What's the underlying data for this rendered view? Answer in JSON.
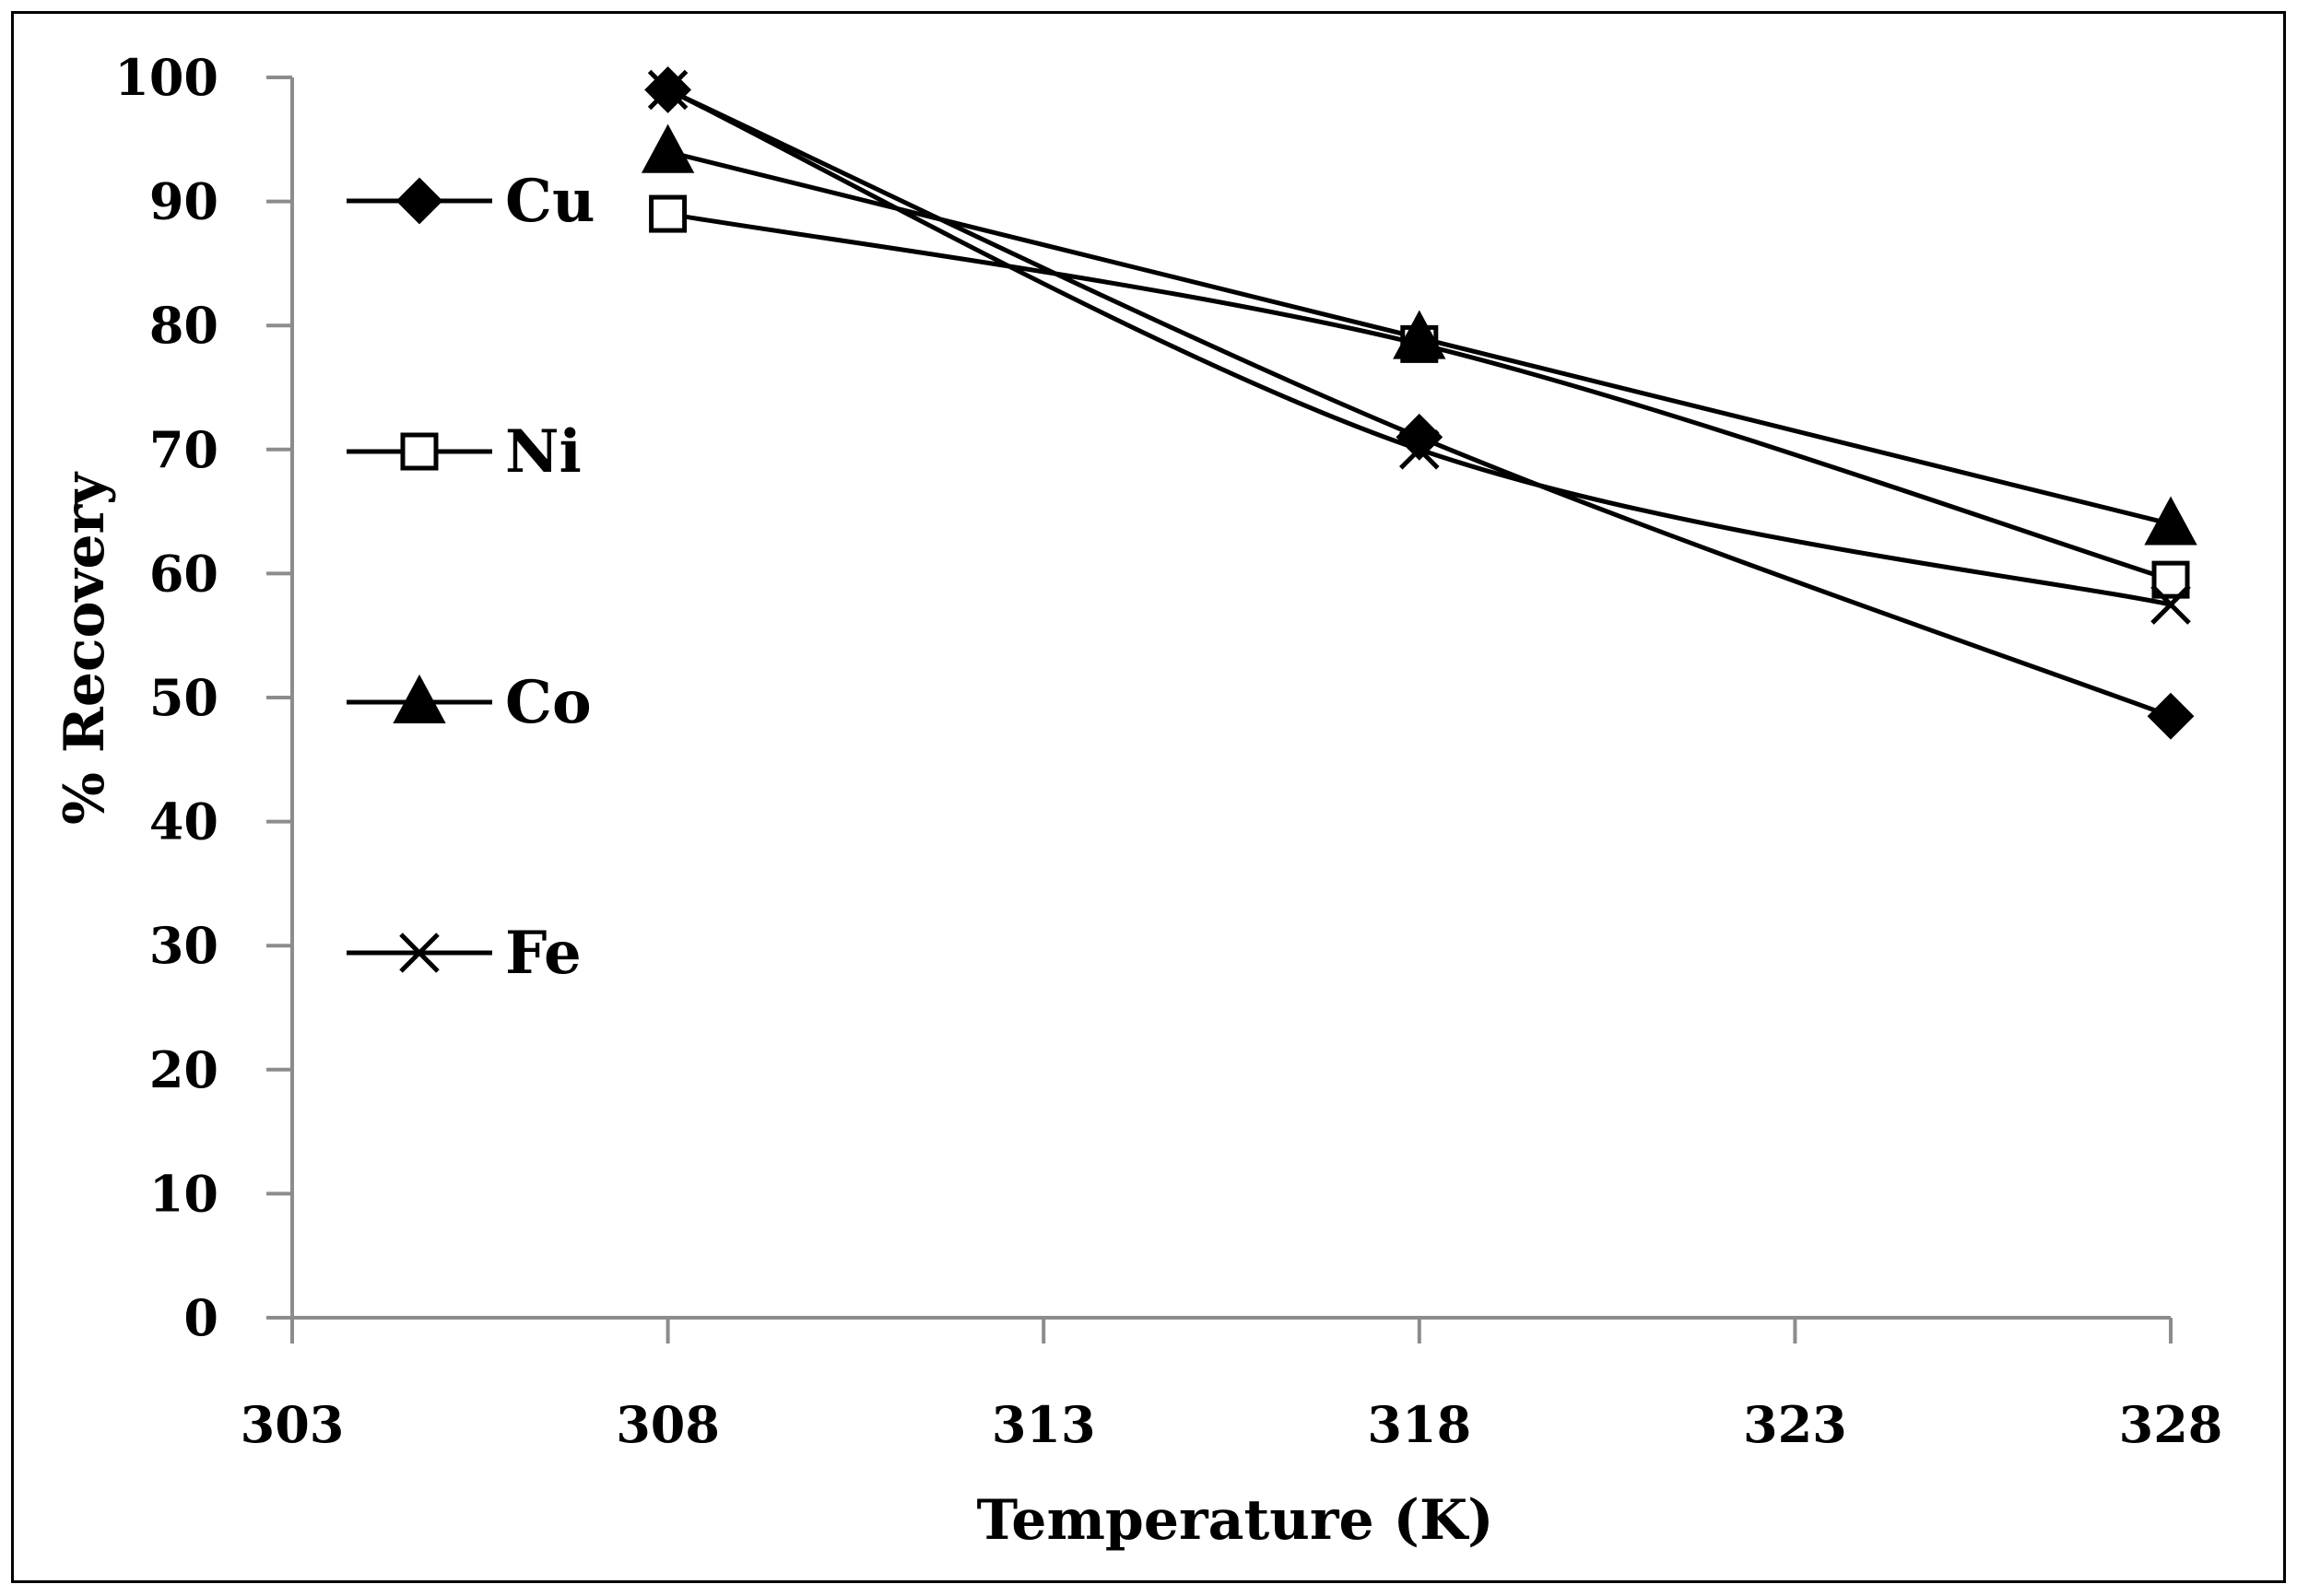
{
  "chart_data": {
    "type": "line",
    "title": "",
    "xlabel": "Temperature (K)",
    "ylabel": "% Recovery",
    "xlim": [
      303,
      328
    ],
    "ylim": [
      0,
      100
    ],
    "xticks": [
      303,
      308,
      313,
      318,
      323,
      328
    ],
    "yticks": [
      0,
      10,
      20,
      30,
      40,
      50,
      60,
      70,
      80,
      90,
      100
    ],
    "grid": false,
    "legend_position": "left",
    "x": [
      308,
      318,
      328
    ],
    "series": [
      {
        "name": "Cu",
        "marker": "diamond",
        "values": [
          99,
          71,
          48.5
        ]
      },
      {
        "name": "Ni",
        "marker": "open-square",
        "values": [
          89,
          78.5,
          59.5
        ]
      },
      {
        "name": "Co",
        "marker": "triangle",
        "values": [
          94,
          79,
          64
        ]
      },
      {
        "name": "Fe",
        "marker": "x",
        "values": [
          99,
          70,
          57.5
        ]
      }
    ]
  }
}
